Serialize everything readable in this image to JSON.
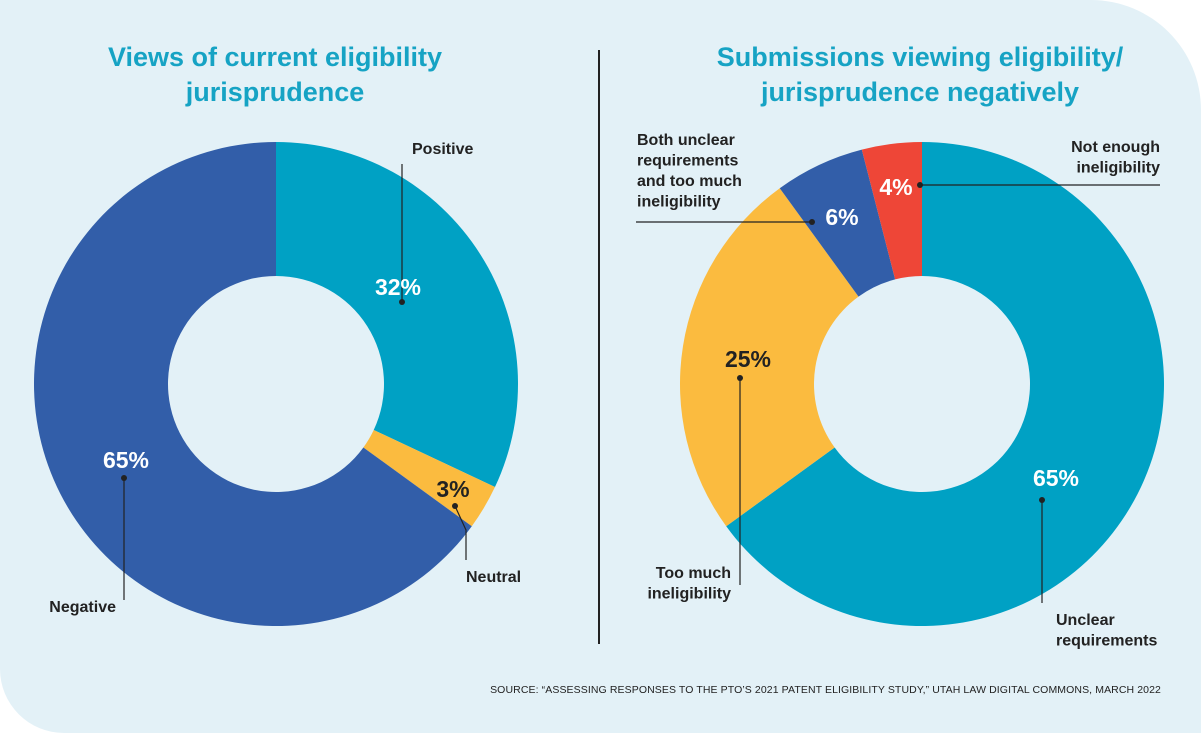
{
  "chart_data": [
    {
      "type": "pie",
      "title": "Views of current eligibility\njurisprudence",
      "slices": [
        {
          "label": "Positive",
          "value": 32,
          "display": "32%",
          "color": "#00a1c4",
          "text_color": "#ffffff"
        },
        {
          "label": "Neutral",
          "value": 3,
          "display": "3%",
          "color": "#fbbb3f",
          "text_color": "#222222"
        },
        {
          "label": "Negative",
          "value": 65,
          "display": "65%",
          "color": "#325ea9",
          "text_color": "#ffffff"
        }
      ]
    },
    {
      "type": "pie",
      "title": "Submissions viewing eligibility/\njurisprudence negatively",
      "slices": [
        {
          "label": "Unclear\nrequirements",
          "value": 65,
          "display": "65%",
          "color": "#00a1c4",
          "text_color": "#ffffff"
        },
        {
          "label": "Too much\nineligibility",
          "value": 25,
          "display": "25%",
          "color": "#fbbb3f",
          "text_color": "#222222"
        },
        {
          "label": "Both unclear\nrequirements\nand too much\nineligibility",
          "value": 6,
          "display": "6%",
          "color": "#325ea9",
          "text_color": "#ffffff"
        },
        {
          "label": "Not enough\nineligibility",
          "value": 4,
          "display": "4%",
          "color": "#ee4637",
          "text_color": "#ffffff"
        }
      ]
    }
  ],
  "source": "SOURCE: “ASSESSING RESPONSES TO THE PTO’S 2021 PATENT ELIGIBILITY STUDY,” UTAH LAW DIGITAL COMMONS, MARCH 2022"
}
